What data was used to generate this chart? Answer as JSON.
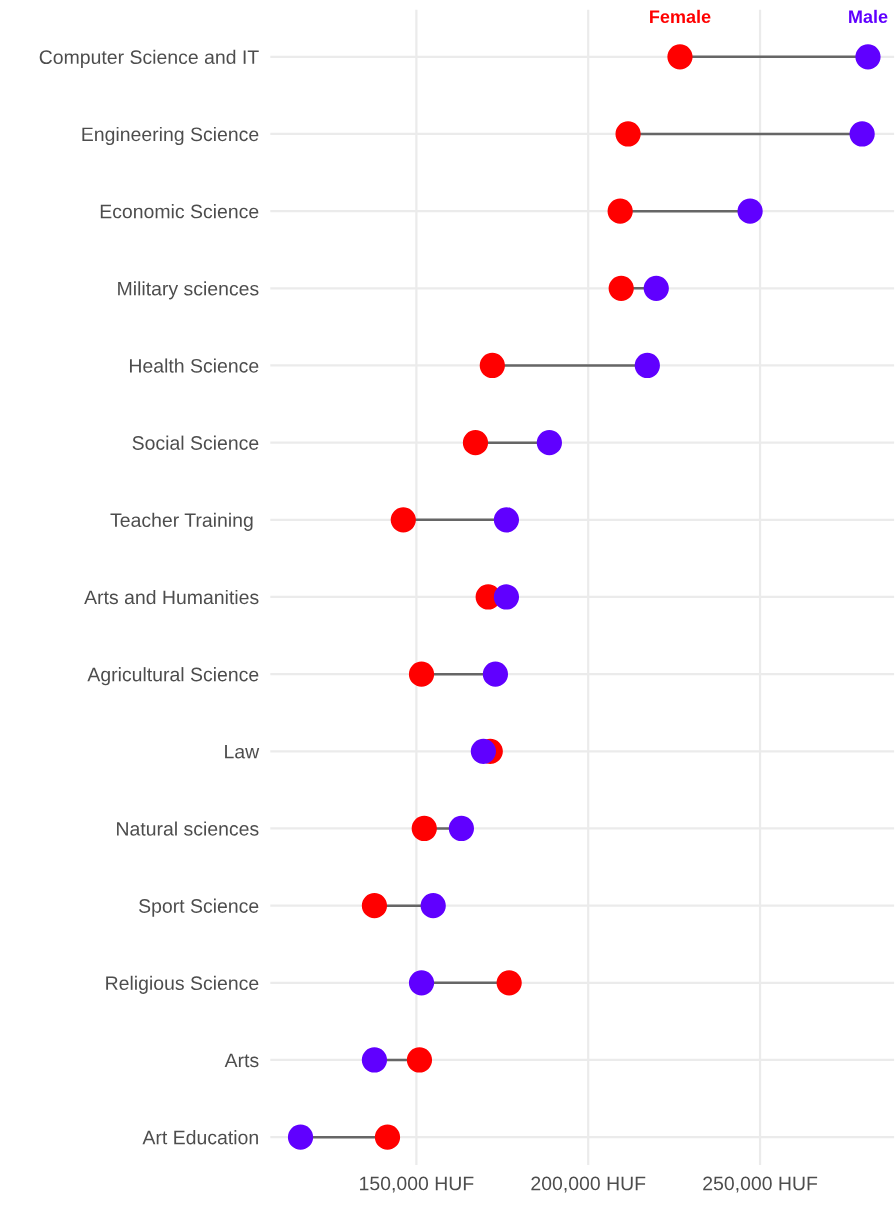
{
  "chart_data": {
    "type": "scatter",
    "orientation": "horizontal",
    "categories": [
      "Computer Science and IT",
      "Engineering Science",
      "Economic Science",
      "Military sciences",
      "Health Science",
      "Social Science",
      "Teacher Training ",
      "Arts and Humanities",
      "Agricultural Science",
      "Law",
      "Natural sciences",
      "Sport Science",
      "Religious Science",
      "Arts",
      "Art Education"
    ],
    "series": [
      {
        "name": "Female",
        "color": "#ff0000",
        "values": [
          226700,
          211600,
          209300,
          209600,
          172100,
          167200,
          146200,
          170900,
          151500,
          171500,
          152300,
          137800,
          177000,
          150900,
          141600
        ]
      },
      {
        "name": "Male",
        "color": "#6000ff",
        "values": [
          281400,
          279700,
          247100,
          219800,
          217200,
          188700,
          176200,
          176200,
          173000,
          169500,
          163100,
          154900,
          151500,
          137800,
          116300
        ]
      }
    ],
    "xlim": [
      107500,
      289000
    ],
    "xticks": [
      {
        "value": 150000,
        "label": "150,000 HUF"
      },
      {
        "value": 200000,
        "label": "200,000 HUF"
      },
      {
        "value": 250000,
        "label": "250,000 HUF"
      }
    ],
    "grid": true,
    "legend": false,
    "marker": "circle"
  }
}
